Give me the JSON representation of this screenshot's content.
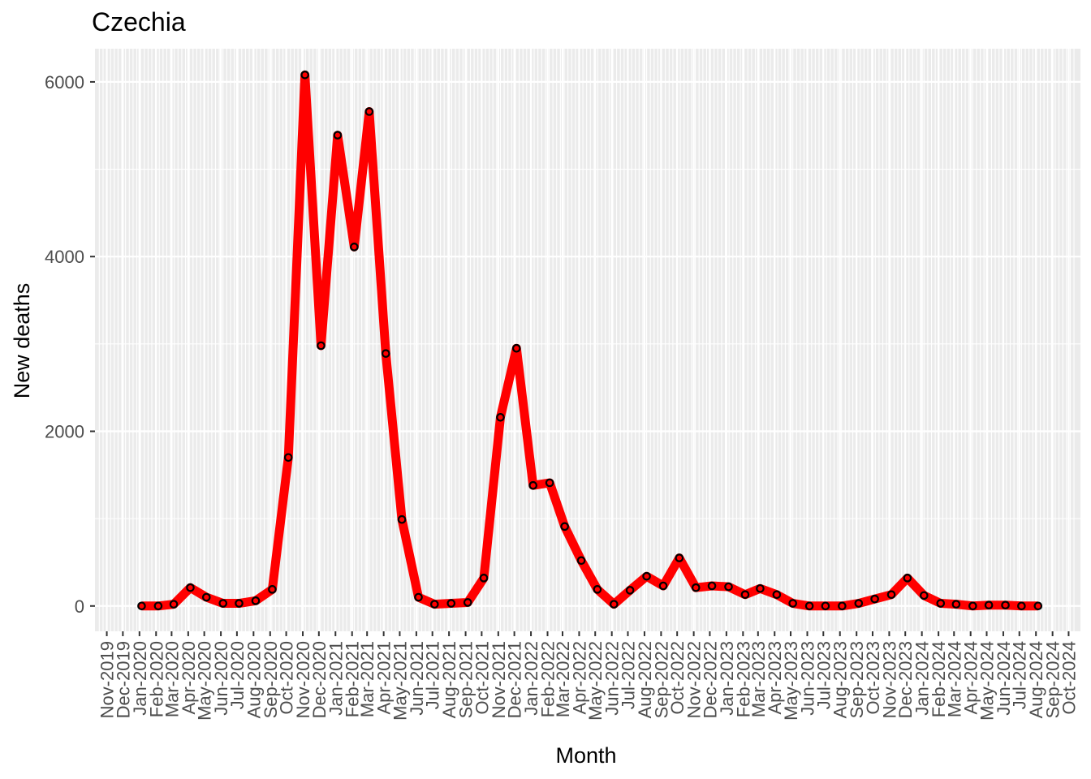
{
  "chart_data": {
    "type": "line",
    "title": "Czechia",
    "xlabel": "Month",
    "ylabel": "New deaths",
    "ylim": [
      -290,
      6380
    ],
    "y_ticks": [
      0,
      2000,
      4000,
      6000
    ],
    "grid": true,
    "x_tick_labels": [
      "Nov-2019",
      "Dec-2019",
      "Jan-2020",
      "Feb-2020",
      "Mar-2020",
      "Apr-2020",
      "May-2020",
      "Jun-2020",
      "Jul-2020",
      "Aug-2020",
      "Sep-2020",
      "Oct-2020",
      "Nov-2020",
      "Dec-2020",
      "Jan-2021",
      "Feb-2021",
      "Mar-2021",
      "Apr-2021",
      "May-2021",
      "Jun-2021",
      "Jul-2021",
      "Aug-2021",
      "Sep-2021",
      "Oct-2021",
      "Nov-2021",
      "Dec-2021",
      "Jan-2022",
      "Feb-2022",
      "Mar-2022",
      "Apr-2022",
      "May-2022",
      "Jun-2022",
      "Jul-2022",
      "Aug-2022",
      "Sep-2022",
      "Oct-2022",
      "Nov-2022",
      "Dec-2022",
      "Jan-2023",
      "Feb-2023",
      "Mar-2023",
      "Apr-2023",
      "May-2023",
      "Jun-2023",
      "Jul-2023",
      "Aug-2023",
      "Sep-2023",
      "Oct-2023",
      "Nov-2023",
      "Dec-2023",
      "Jan-2024",
      "Feb-2024",
      "Mar-2024",
      "Apr-2024",
      "May-2024",
      "Jun-2024",
      "Jul-2024",
      "Aug-2024",
      "Sep-2024",
      "Oct-2024"
    ],
    "series": [
      {
        "color": "#ff0000",
        "marker_edge": "#000000",
        "x": [
          "2020-01-05",
          "2020-02-05",
          "2020-03-05",
          "2020-04-05",
          "2020-05-05",
          "2020-06-05",
          "2020-07-05",
          "2020-08-05",
          "2020-09-05",
          "2020-10-05",
          "2020-11-05",
          "2020-12-05",
          "2021-01-05",
          "2021-02-05",
          "2021-03-05",
          "2021-04-05",
          "2021-05-05",
          "2021-06-05",
          "2021-07-05",
          "2021-08-05",
          "2021-09-05",
          "2021-10-05",
          "2021-11-05",
          "2021-12-05",
          "2022-01-05",
          "2022-02-05",
          "2022-03-05",
          "2022-04-05",
          "2022-05-05",
          "2022-06-05",
          "2022-07-05",
          "2022-08-05",
          "2022-09-05",
          "2022-10-05",
          "2022-11-05",
          "2022-12-05",
          "2023-01-05",
          "2023-02-05",
          "2023-03-05",
          "2023-04-05",
          "2023-05-05",
          "2023-06-05",
          "2023-07-05",
          "2023-08-05",
          "2023-09-05",
          "2023-10-05",
          "2023-11-05",
          "2023-12-05",
          "2024-01-05",
          "2024-02-05",
          "2024-03-05",
          "2024-04-05",
          "2024-05-05",
          "2024-06-05",
          "2024-07-05",
          "2024-08-05"
        ],
        "y": [
          0,
          0,
          20,
          210,
          100,
          30,
          30,
          60,
          190,
          1700,
          6080,
          2980,
          5390,
          4110,
          5660,
          2890,
          990,
          100,
          20,
          30,
          40,
          320,
          2160,
          2950,
          1380,
          1410,
          910,
          520,
          190,
          20,
          180,
          340,
          230,
          550,
          210,
          230,
          220,
          130,
          200,
          130,
          30,
          0,
          0,
          0,
          30,
          80,
          130,
          320,
          120,
          30,
          20,
          0,
          10,
          10,
          0,
          0
        ]
      }
    ]
  }
}
